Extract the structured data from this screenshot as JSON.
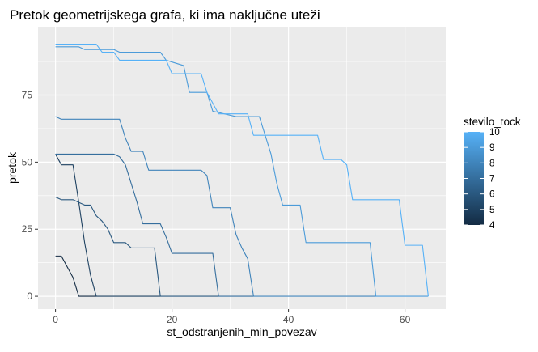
{
  "chart_data": {
    "type": "line",
    "title": "Pretok geometrijskega grafa, ki ima naključne uteži",
    "xlabel": "st_odstranjenih_min_povezav",
    "ylabel": "pretok",
    "xlim": [
      -3,
      67
    ],
    "ylim": [
      -4.8,
      100.5
    ],
    "x_ticks": [
      0,
      20,
      40,
      60
    ],
    "x_tick_labels": [
      "0",
      "20",
      "40",
      "60"
    ],
    "y_ticks": [
      0,
      25,
      50,
      75
    ],
    "y_tick_labels": [
      "0",
      "25",
      "50",
      "75"
    ],
    "grid": true,
    "panel_background": "#EBEBEB",
    "legend": {
      "title": "stevilo_tock",
      "placement": "right",
      "type": "colorbar",
      "min": 4,
      "max": 10,
      "tick_values": [
        4,
        5,
        6,
        7,
        8,
        9,
        10
      ],
      "tick_labels": [
        "4",
        "5",
        "6",
        "7",
        "8",
        "9",
        "10"
      ],
      "low_color": "#132B43",
      "high_color": "#56B1F7"
    },
    "series": [
      {
        "color_value": 4,
        "points": [
          [
            0,
            15
          ],
          [
            1,
            15
          ],
          [
            2,
            11
          ],
          [
            3,
            7
          ],
          [
            4,
            0
          ],
          [
            7,
            0
          ]
        ]
      },
      {
        "color_value": 5,
        "points": [
          [
            0,
            53
          ],
          [
            1,
            49
          ],
          [
            3,
            49
          ],
          [
            4,
            35
          ],
          [
            5,
            20
          ],
          [
            6,
            8
          ],
          [
            7,
            0
          ],
          [
            18,
            0
          ]
        ]
      },
      {
        "color_value": 6,
        "points": [
          [
            0,
            37
          ],
          [
            1,
            36
          ],
          [
            3,
            36
          ],
          [
            4,
            35
          ],
          [
            5,
            34
          ],
          [
            6,
            34
          ],
          [
            7,
            30
          ],
          [
            8,
            28
          ],
          [
            9,
            25
          ],
          [
            10,
            20
          ],
          [
            12,
            20
          ],
          [
            13,
            18
          ],
          [
            17,
            18
          ],
          [
            18,
            0
          ],
          [
            28,
            0
          ]
        ]
      },
      {
        "color_value": 7,
        "points": [
          [
            0,
            53
          ],
          [
            10,
            53
          ],
          [
            11,
            52
          ],
          [
            12,
            49
          ],
          [
            13,
            42
          ],
          [
            14,
            35
          ],
          [
            15,
            27
          ],
          [
            18,
            27
          ],
          [
            19,
            22
          ],
          [
            20,
            16
          ],
          [
            27,
            16
          ],
          [
            28,
            0
          ],
          [
            34,
            0
          ]
        ]
      },
      {
        "color_value": 8,
        "points": [
          [
            0,
            67
          ],
          [
            1,
            66
          ],
          [
            11,
            66
          ],
          [
            12,
            59
          ],
          [
            13,
            54
          ],
          [
            15,
            54
          ],
          [
            16,
            47
          ],
          [
            25,
            47
          ],
          [
            26,
            45
          ],
          [
            27,
            33
          ],
          [
            30,
            33
          ],
          [
            31,
            23
          ],
          [
            32,
            18
          ],
          [
            33,
            14
          ],
          [
            34,
            0
          ],
          [
            55,
            0
          ]
        ]
      },
      {
        "color_value": 9,
        "points": [
          [
            0,
            93
          ],
          [
            4,
            93
          ],
          [
            5,
            92
          ],
          [
            10,
            92
          ],
          [
            11,
            91
          ],
          [
            18,
            91
          ],
          [
            19,
            88
          ],
          [
            22,
            86
          ],
          [
            23,
            76
          ],
          [
            26,
            76
          ],
          [
            27,
            69
          ],
          [
            31,
            67
          ],
          [
            35,
            67
          ],
          [
            36,
            60
          ],
          [
            37,
            53
          ],
          [
            38,
            42
          ],
          [
            39,
            34
          ],
          [
            42,
            34
          ],
          [
            43,
            20
          ],
          [
            54,
            20
          ],
          [
            55,
            0
          ],
          [
            64,
            0
          ]
        ]
      },
      {
        "color_value": 10,
        "points": [
          [
            0,
            94
          ],
          [
            7,
            94
          ],
          [
            8,
            91
          ],
          [
            10,
            91
          ],
          [
            11,
            88
          ],
          [
            19,
            88
          ],
          [
            20,
            83
          ],
          [
            25,
            83
          ],
          [
            26,
            76
          ],
          [
            27,
            72
          ],
          [
            28,
            68
          ],
          [
            33,
            68
          ],
          [
            34,
            60
          ],
          [
            45,
            60
          ],
          [
            46,
            51
          ],
          [
            49,
            51
          ],
          [
            50,
            49
          ],
          [
            51,
            36
          ],
          [
            59,
            36
          ],
          [
            60,
            19
          ],
          [
            63,
            19
          ],
          [
            64,
            0
          ]
        ]
      }
    ]
  }
}
